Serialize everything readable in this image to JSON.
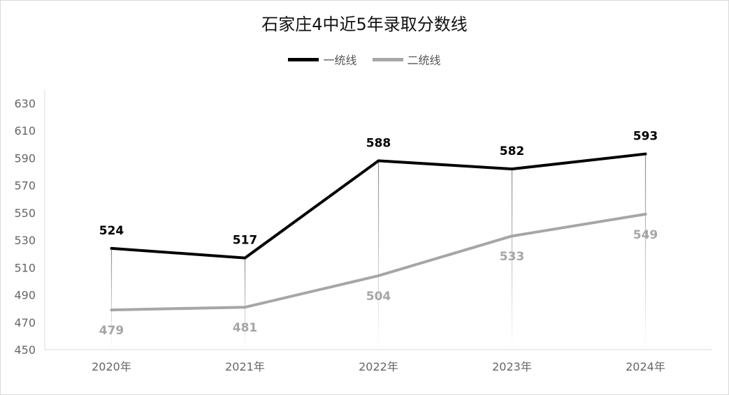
{
  "chart_data": {
    "type": "line",
    "title": "石家庄4中近5年录取分数线",
    "categories": [
      "2020年",
      "2021年",
      "2022年",
      "2023年",
      "2024年"
    ],
    "series": [
      {
        "name": "一统线",
        "values": [
          524,
          517,
          588,
          582,
          593
        ],
        "color": "#000000"
      },
      {
        "name": "二统线",
        "values": [
          479,
          481,
          504,
          533,
          549
        ],
        "color": "#a6a6a6"
      }
    ],
    "ylim": [
      450,
      630
    ],
    "yticks": [
      450,
      470,
      490,
      510,
      530,
      550,
      570,
      590,
      610,
      630
    ],
    "legend_position": "top-center",
    "grid": false
  }
}
